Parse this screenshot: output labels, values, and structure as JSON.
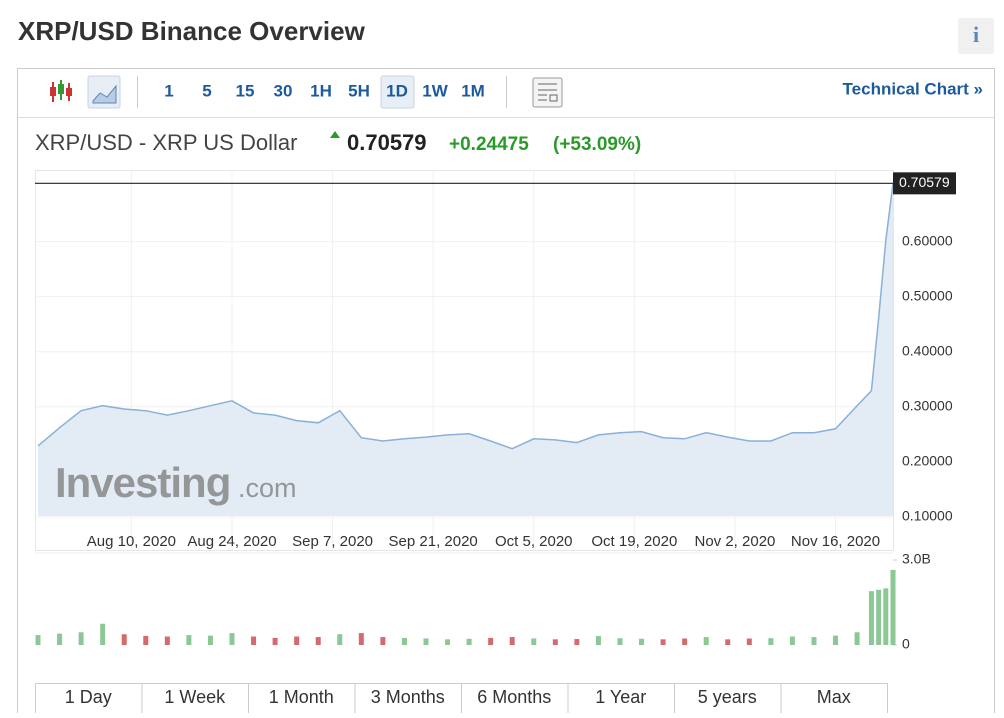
{
  "header": {
    "title": "XRP/USD Binance Overview",
    "info": "i"
  },
  "toolbar": {
    "intervals": [
      "1",
      "5",
      "15",
      "30",
      "1H",
      "5H",
      "1D",
      "1W",
      "1M"
    ],
    "link": "Technical Chart »"
  },
  "quote": {
    "name": "XRP/USD - XRP US Dollar",
    "price": "0.70579",
    "change": "+0.24475",
    "change_pct": "(+53.09%)"
  },
  "watermark": {
    "brand": "Investing",
    "suffix": ".com"
  },
  "ranges": [
    "1 Day",
    "1 Week",
    "1 Month",
    "3 Months",
    "6 Months",
    "1 Year",
    "5 years",
    "Max"
  ],
  "chart_data": [
    {
      "type": "area",
      "x": [
        "2020-07-28",
        "2020-07-31",
        "2020-08-03",
        "2020-08-06",
        "2020-08-09",
        "2020-08-12",
        "2020-08-15",
        "2020-08-18",
        "2020-08-21",
        "2020-08-24",
        "2020-08-27",
        "2020-08-30",
        "2020-09-02",
        "2020-09-05",
        "2020-09-08",
        "2020-09-11",
        "2020-09-14",
        "2020-09-17",
        "2020-09-20",
        "2020-09-23",
        "2020-09-26",
        "2020-09-29",
        "2020-10-02",
        "2020-10-05",
        "2020-10-08",
        "2020-10-11",
        "2020-10-14",
        "2020-10-17",
        "2020-10-20",
        "2020-10-23",
        "2020-10-26",
        "2020-10-29",
        "2020-11-01",
        "2020-11-04",
        "2020-11-07",
        "2020-11-10",
        "2020-11-13",
        "2020-11-16",
        "2020-11-19",
        "2020-11-21",
        "2020-11-22",
        "2020-11-23",
        "2020-11-24"
      ],
      "values": [
        0.229,
        0.262,
        0.293,
        0.302,
        0.296,
        0.293,
        0.285,
        0.293,
        0.302,
        0.311,
        0.289,
        0.285,
        0.275,
        0.271,
        0.293,
        0.244,
        0.238,
        0.242,
        0.245,
        0.249,
        0.251,
        0.238,
        0.224,
        0.242,
        0.24,
        0.235,
        0.249,
        0.253,
        0.255,
        0.244,
        0.242,
        0.253,
        0.245,
        0.238,
        0.238,
        0.253,
        0.253,
        0.26,
        0.302,
        0.329,
        0.46,
        0.602,
        0.70579
      ],
      "color": "#8ab0d8",
      "xlim": [
        "2020-07-28",
        "2020-11-24"
      ],
      "xticks": [
        {
          "value": "2020-08-10",
          "label": "Aug 10, 2020"
        },
        {
          "value": "2020-08-24",
          "label": "Aug 24, 2020"
        },
        {
          "value": "2020-09-07",
          "label": "Sep 7, 2020"
        },
        {
          "value": "2020-09-21",
          "label": "Sep 21, 2020"
        },
        {
          "value": "2020-10-05",
          "label": "Oct 5, 2020"
        },
        {
          "value": "2020-10-19",
          "label": "Oct 19, 2020"
        },
        {
          "value": "2020-11-02",
          "label": "Nov 2, 2020"
        },
        {
          "value": "2020-11-16",
          "label": "Nov 16, 2020"
        }
      ],
      "ylim": [
        0.04,
        0.73
      ],
      "yticks": [
        {
          "value": 0.1,
          "label": "0.10000"
        },
        {
          "value": 0.2,
          "label": "0.20000"
        },
        {
          "value": 0.3,
          "label": "0.30000"
        },
        {
          "value": 0.4,
          "label": "0.40000"
        },
        {
          "value": 0.5,
          "label": "0.50000"
        },
        {
          "value": 0.6,
          "label": "0.60000"
        }
      ],
      "grid": true
    },
    {
      "type": "bar",
      "x": [
        "2020-07-28",
        "2020-07-31",
        "2020-08-03",
        "2020-08-06",
        "2020-08-09",
        "2020-08-12",
        "2020-08-15",
        "2020-08-18",
        "2020-08-21",
        "2020-08-24",
        "2020-08-27",
        "2020-08-30",
        "2020-09-02",
        "2020-09-05",
        "2020-09-08",
        "2020-09-11",
        "2020-09-14",
        "2020-09-17",
        "2020-09-20",
        "2020-09-23",
        "2020-09-26",
        "2020-09-29",
        "2020-10-02",
        "2020-10-05",
        "2020-10-08",
        "2020-10-11",
        "2020-10-14",
        "2020-10-17",
        "2020-10-20",
        "2020-10-23",
        "2020-10-26",
        "2020-10-29",
        "2020-11-01",
        "2020-11-04",
        "2020-11-07",
        "2020-11-10",
        "2020-11-13",
        "2020-11-16",
        "2020-11-19",
        "2020-11-21",
        "2020-11-22",
        "2020-11-23",
        "2020-11-24"
      ],
      "values": [
        350000000,
        400000000,
        450000000,
        750000000,
        380000000,
        320000000,
        300000000,
        350000000,
        330000000,
        420000000,
        300000000,
        250000000,
        300000000,
        280000000,
        380000000,
        420000000,
        280000000,
        250000000,
        230000000,
        200000000,
        220000000,
        250000000,
        280000000,
        230000000,
        200000000,
        210000000,
        320000000,
        240000000,
        220000000,
        200000000,
        230000000,
        280000000,
        200000000,
        230000000,
        240000000,
        300000000,
        280000000,
        330000000,
        450000000,
        1900000000,
        1950000000,
        2000000000,
        2650000000
      ],
      "up_color": "#8cc796",
      "down_color": "#d46a6e",
      "xlim": [
        "2020-07-28",
        "2020-11-24"
      ],
      "ylim": [
        0,
        3000000000
      ],
      "yticks": [
        {
          "value": 3000000000,
          "label": "3.0B"
        },
        0
      ]
    }
  ]
}
